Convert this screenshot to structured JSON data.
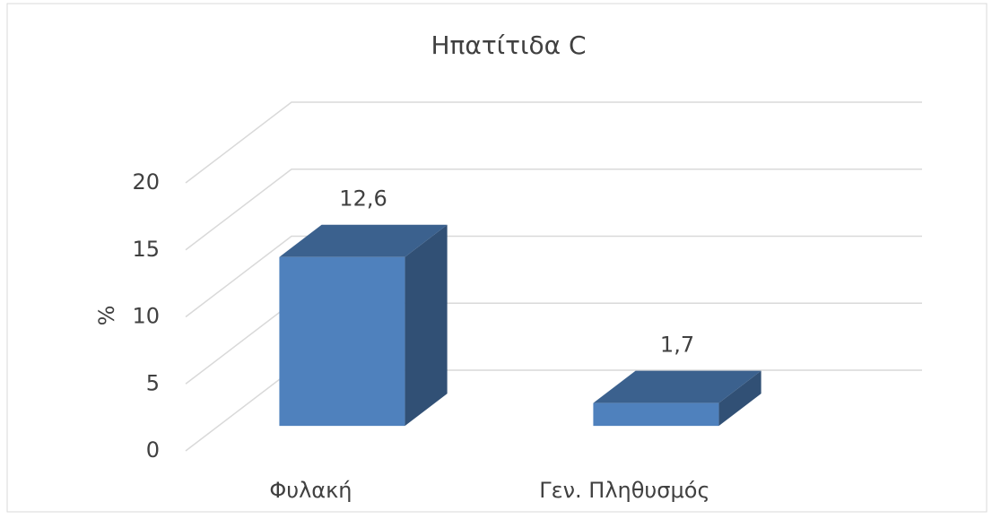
{
  "chart_data": {
    "type": "bar3d",
    "title": "Ηπατίτιδα C",
    "y_label": "%",
    "categories": [
      "Φυλακή",
      "Γεν. Πληθυσμός"
    ],
    "values": [
      12.6,
      1.7
    ],
    "value_labels": [
      "12,6",
      "1,7"
    ],
    "color": "#4f81bd",
    "ylim": [
      0,
      20
    ],
    "yticks": [
      0,
      5,
      10,
      15,
      20
    ],
    "grid": true
  }
}
